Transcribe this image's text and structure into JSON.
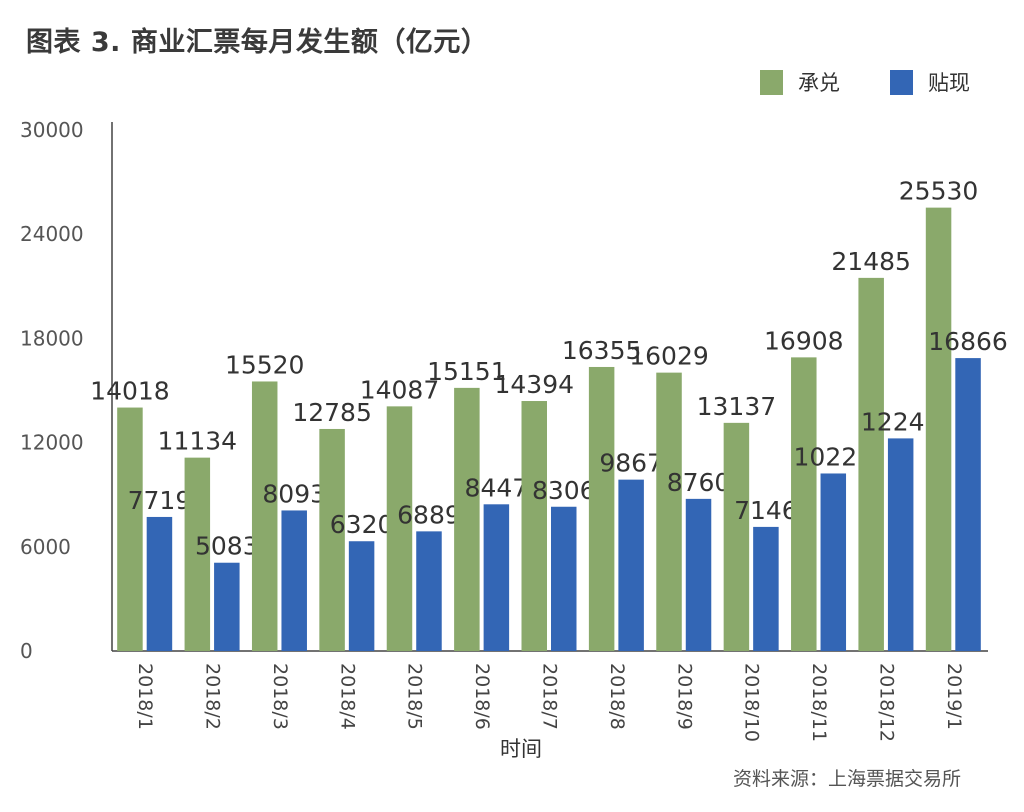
{
  "chart_data": {
    "type": "bar",
    "title": "图表 3. 商业汇票每月发生额（亿元）",
    "xlabel": "时间",
    "ylabel": "",
    "ylim": [
      0,
      30000
    ],
    "yticks": [
      "0",
      "6000",
      "12000",
      "18000",
      "24000",
      "30000"
    ],
    "ytick_values": [
      0,
      6000,
      12000,
      18000,
      24000,
      30000
    ],
    "grid": false,
    "legend_position": "top-right",
    "categories": [
      "2018/1",
      "2018/2",
      "2018/3",
      "2018/4",
      "2018/5",
      "2018/6",
      "2018/7",
      "2018/8",
      "2018/9",
      "2018/10",
      "2018/11",
      "2018/12",
      "2019/1"
    ],
    "series": [
      {
        "name": "承兑",
        "color": "#8aa96b",
        "values": [
          14018,
          11134,
          15520,
          12785,
          14087,
          15151,
          14394,
          16355,
          16029,
          13137,
          16908,
          21485,
          25530
        ]
      },
      {
        "name": "贴现",
        "color": "#3366b5",
        "values": [
          7719,
          5083,
          8093,
          6320,
          6889,
          8447,
          8306,
          9867,
          8760,
          7146,
          10222,
          12242,
          16866
        ]
      }
    ],
    "source": "资料来源：上海票据交易所"
  }
}
